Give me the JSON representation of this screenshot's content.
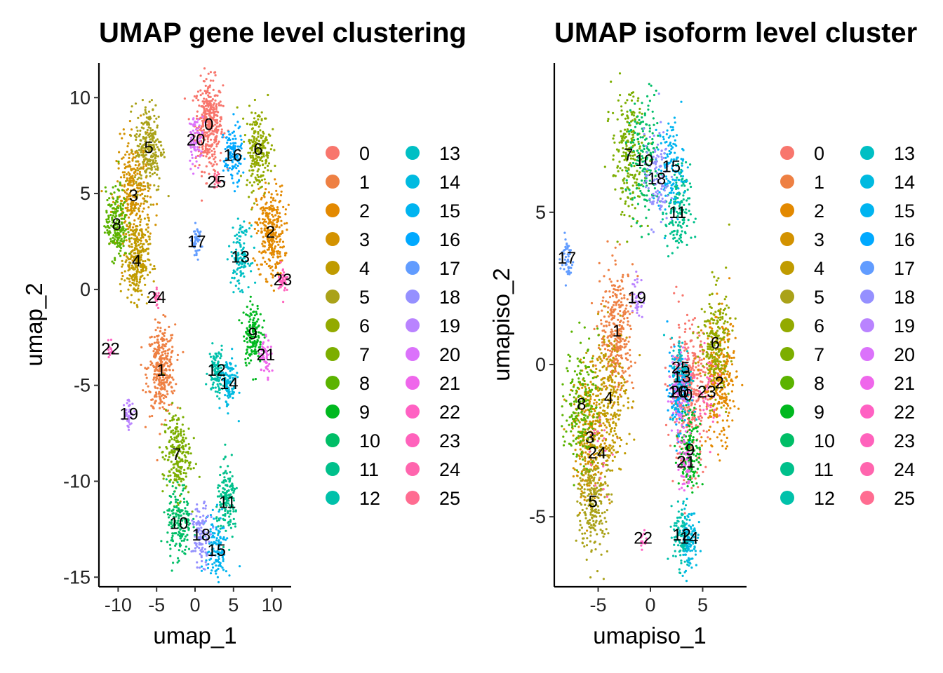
{
  "chart_data": [
    {
      "type": "scatter",
      "title": "UMAP gene level clustering",
      "xlabel": "umap_1",
      "ylabel": "umap_2",
      "xlim": [
        -12.5,
        12.5
      ],
      "ylim": [
        -15.5,
        11.8
      ],
      "xticks": [
        -10,
        -5,
        0,
        5,
        10
      ],
      "xtick_labels": [
        "-10",
        "-5",
        "0",
        "5",
        "10"
      ],
      "yticks": [
        10,
        5,
        0,
        -5,
        -10,
        -15
      ],
      "ytick_labels": [
        "10",
        "5",
        "0",
        "-5",
        "-10",
        "-15"
      ],
      "grid": false,
      "legend_position": "right",
      "cluster_labels": [
        {
          "label": "0",
          "x": 1.8,
          "y": 8.6
        },
        {
          "label": "1",
          "x": -4.4,
          "y": -4.2
        },
        {
          "label": "2",
          "x": 9.8,
          "y": 3.0
        },
        {
          "label": "3",
          "x": -8.0,
          "y": 4.9
        },
        {
          "label": "4",
          "x": -7.6,
          "y": 1.5
        },
        {
          "label": "5",
          "x": -6.0,
          "y": 7.4
        },
        {
          "label": "6",
          "x": 8.2,
          "y": 7.3
        },
        {
          "label": "7",
          "x": -2.4,
          "y": -8.6
        },
        {
          "label": "8",
          "x": -10.2,
          "y": 3.4
        },
        {
          "label": "9",
          "x": 7.5,
          "y": -2.3
        },
        {
          "label": "10",
          "x": -2.1,
          "y": -12.2
        },
        {
          "label": "11",
          "x": 4.2,
          "y": -11.1
        },
        {
          "label": "12",
          "x": 2.8,
          "y": -4.2
        },
        {
          "label": "13",
          "x": 5.9,
          "y": 1.7
        },
        {
          "label": "14",
          "x": 4.4,
          "y": -4.9
        },
        {
          "label": "15",
          "x": 2.8,
          "y": -13.6
        },
        {
          "label": "16",
          "x": 4.9,
          "y": 7.0
        },
        {
          "label": "17",
          "x": 0.2,
          "y": 2.5
        },
        {
          "label": "18",
          "x": 0.8,
          "y": -12.8
        },
        {
          "label": "19",
          "x": -8.6,
          "y": -6.5
        },
        {
          "label": "20",
          "x": 0.1,
          "y": 7.8
        },
        {
          "label": "21",
          "x": 9.2,
          "y": -3.4
        },
        {
          "label": "22",
          "x": -11.0,
          "y": -3.1
        },
        {
          "label": "23",
          "x": 11.4,
          "y": 0.5
        },
        {
          "label": "24",
          "x": -5.0,
          "y": -0.4
        },
        {
          "label": "25",
          "x": 2.8,
          "y": 5.6
        }
      ]
    },
    {
      "type": "scatter",
      "title": "UMAP isoform level cluster",
      "xlabel": "umapiso_1",
      "ylabel": "umapiso_2",
      "xlim": [
        -9.2,
        9.2
      ],
      "ylim": [
        -7.3,
        9.9
      ],
      "xticks": [
        -5,
        0,
        5
      ],
      "xtick_labels": [
        "-5",
        "0",
        "5"
      ],
      "yticks": [
        5,
        0,
        -5
      ],
      "ytick_labels": [
        "5",
        "0",
        "-5"
      ],
      "grid": false,
      "legend_position": "right",
      "cluster_labels": [
        {
          "label": "0",
          "x": 3.6,
          "y": -1.0
        },
        {
          "label": "1",
          "x": -3.2,
          "y": 1.1
        },
        {
          "label": "2",
          "x": 6.6,
          "y": -0.6
        },
        {
          "label": "3",
          "x": -5.8,
          "y": -2.4
        },
        {
          "label": "4",
          "x": -4.0,
          "y": -1.1
        },
        {
          "label": "5",
          "x": -5.5,
          "y": -4.5
        },
        {
          "label": "6",
          "x": 6.2,
          "y": 0.7
        },
        {
          "label": "7",
          "x": -2.1,
          "y": 6.9
        },
        {
          "label": "8",
          "x": -6.6,
          "y": -1.3
        },
        {
          "label": "9",
          "x": 3.8,
          "y": -2.8
        },
        {
          "label": "10",
          "x": -0.6,
          "y": 6.7
        },
        {
          "label": "11",
          "x": 2.6,
          "y": 5.0
        },
        {
          "label": "12",
          "x": 3.0,
          "y": -5.6
        },
        {
          "label": "13",
          "x": 3.0,
          "y": -0.4
        },
        {
          "label": "14",
          "x": 3.7,
          "y": -5.7
        },
        {
          "label": "15",
          "x": 2.0,
          "y": 6.5
        },
        {
          "label": "16",
          "x": 2.6,
          "y": -0.9
        },
        {
          "label": "17",
          "x": -8.0,
          "y": 3.5
        },
        {
          "label": "18",
          "x": 0.6,
          "y": 6.1
        },
        {
          "label": "19",
          "x": -1.3,
          "y": 2.2
        },
        {
          "label": "20",
          "x": 2.8,
          "y": -0.9
        },
        {
          "label": "21",
          "x": 3.4,
          "y": -3.2
        },
        {
          "label": "22",
          "x": -0.7,
          "y": -5.7
        },
        {
          "label": "23",
          "x": 5.4,
          "y": -0.9
        },
        {
          "label": "24",
          "x": -5.1,
          "y": -2.9
        },
        {
          "label": "25",
          "x": 2.9,
          "y": -0.1
        }
      ]
    }
  ],
  "legend": {
    "entries": [
      "0",
      "1",
      "2",
      "3",
      "4",
      "5",
      "6",
      "7",
      "8",
      "9",
      "10",
      "11",
      "12",
      "13",
      "14",
      "15",
      "16",
      "17",
      "18",
      "19",
      "20",
      "21",
      "22",
      "23",
      "24",
      "25"
    ],
    "colors": [
      "#F8766D",
      "#EE8043",
      "#E38900",
      "#D39200",
      "#C09B00",
      "#AAA219",
      "#93AA00",
      "#7CAE00",
      "#5BB300",
      "#00B81F",
      "#00BE67",
      "#00C08B",
      "#00C1AA",
      "#00BFC4",
      "#00BAE0",
      "#00B4F0",
      "#00A9FF",
      "#619CFF",
      "#9590FF",
      "#B983FF",
      "#DB72FB",
      "#EF67EB",
      "#FF61C3",
      "#FF62BC",
      "#FF65AE",
      "#FF6C91"
    ]
  }
}
